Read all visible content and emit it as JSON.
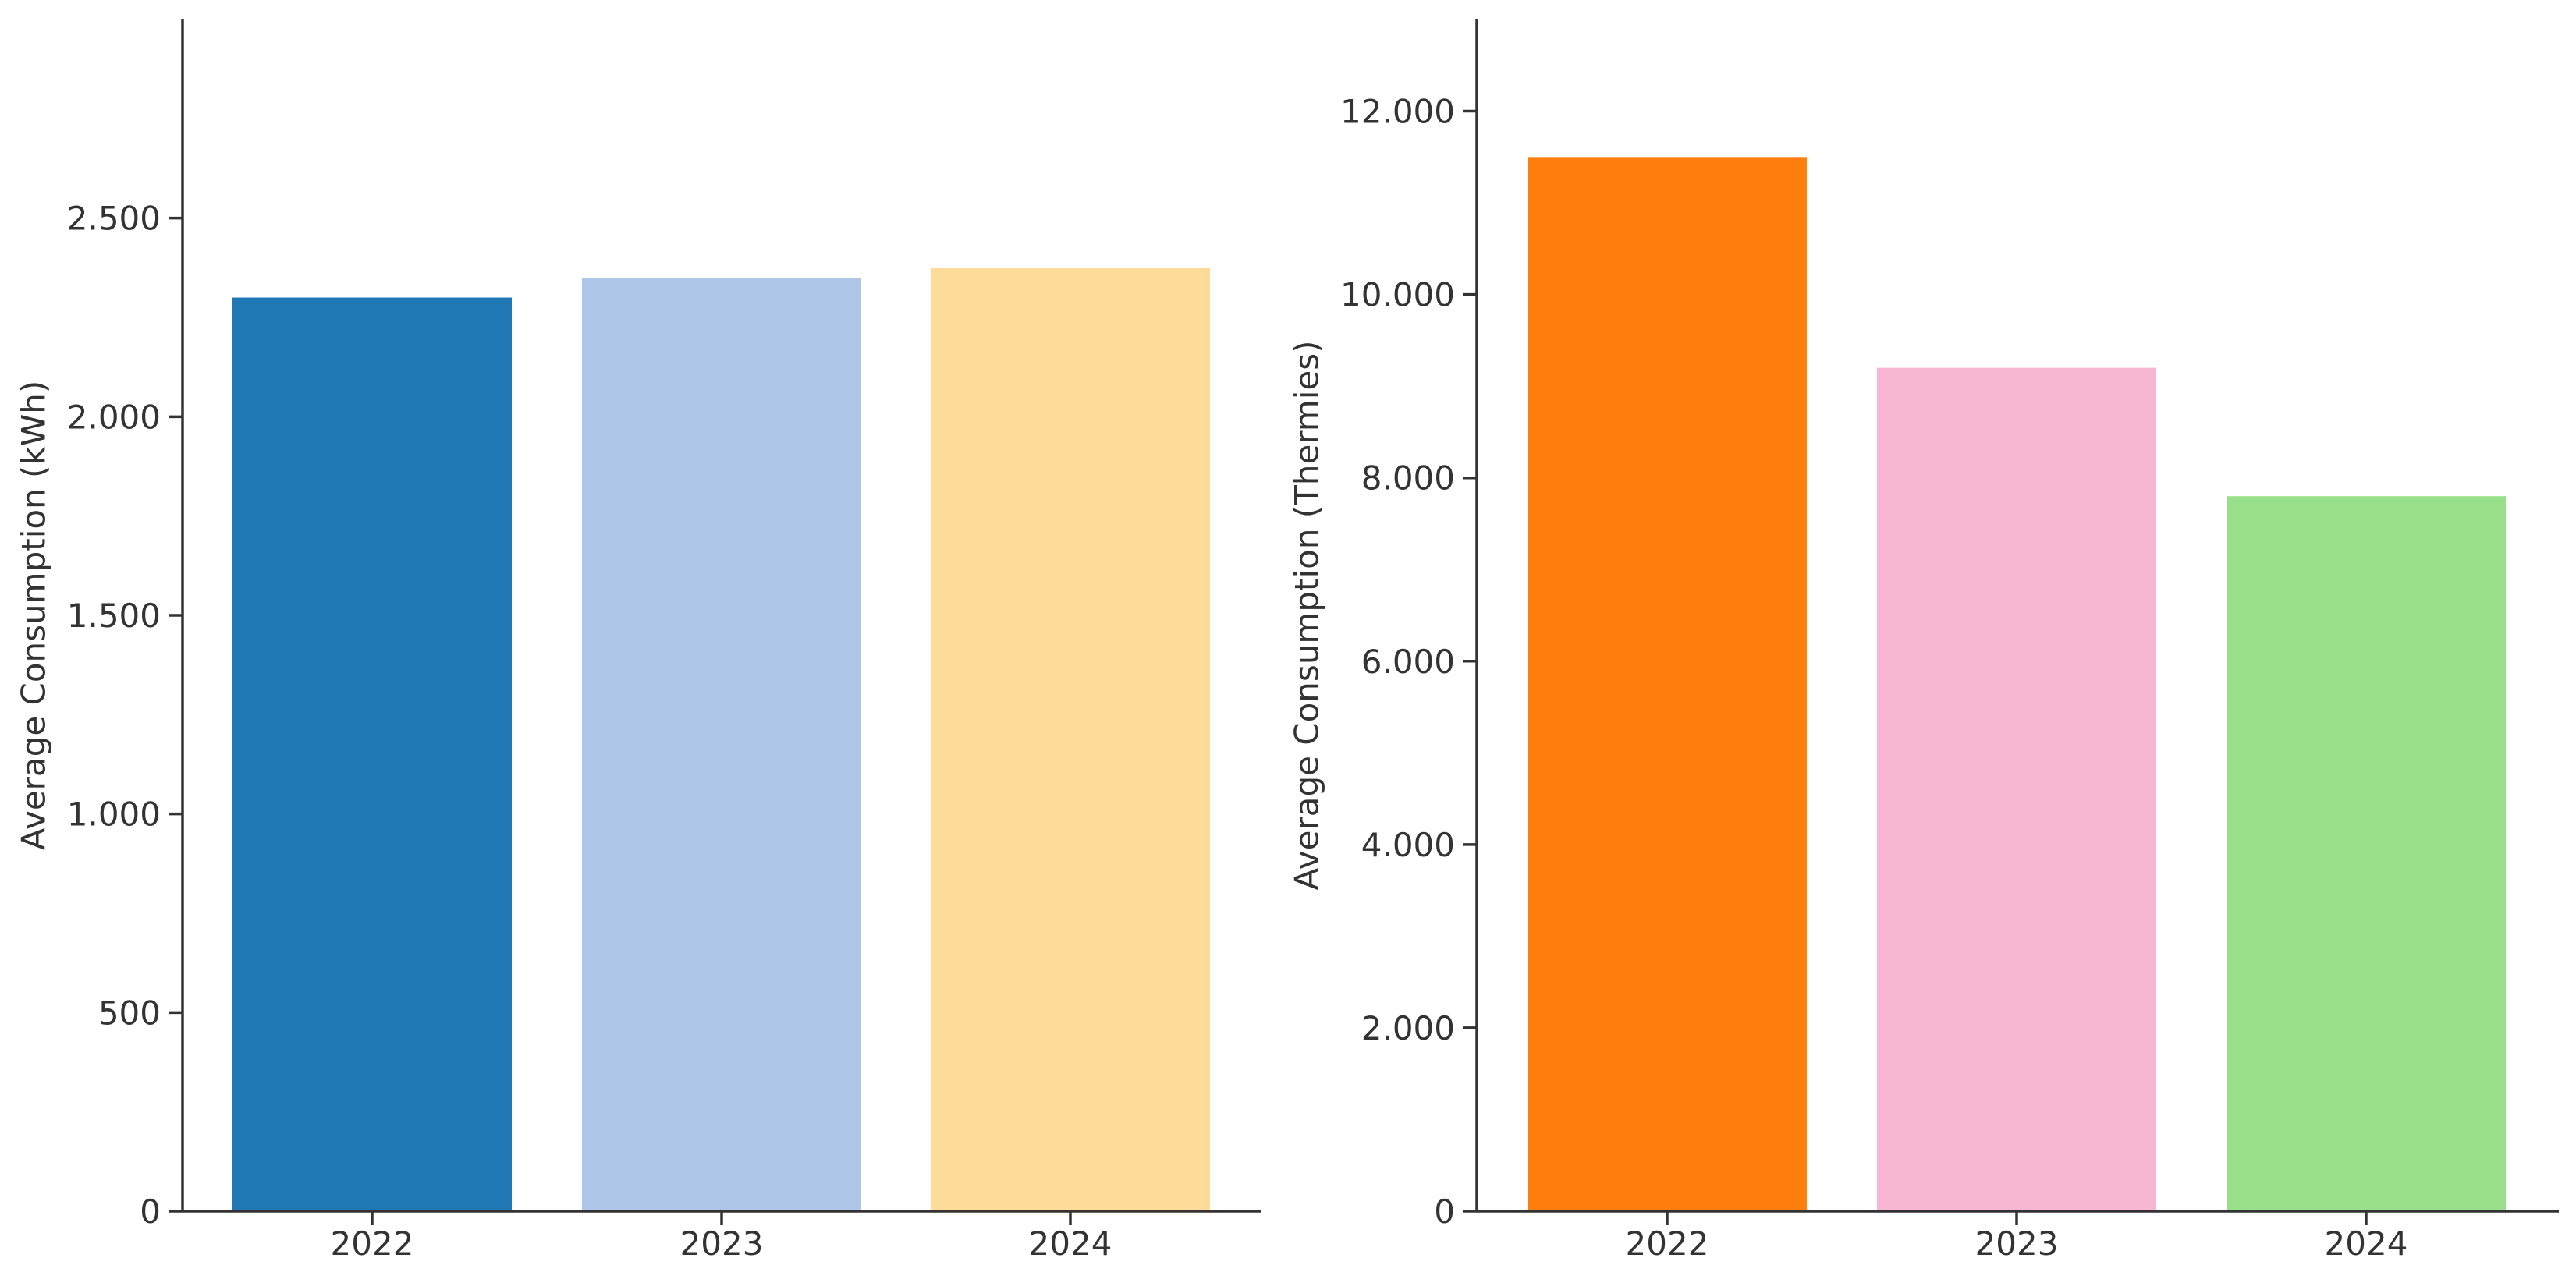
{
  "chart_data": [
    {
      "type": "bar",
      "categories": [
        "2022",
        "2023",
        "2024"
      ],
      "values": [
        2300,
        2350,
        2375
      ],
      "colors": [
        "#1f77b4",
        "#aec7e8",
        "#ffdb99"
      ],
      "title": "",
      "xlabel": "",
      "ylabel": "Average Consumption (kWh)",
      "ylim": [
        0,
        3000
      ],
      "yticks": [
        0,
        500,
        1000,
        1500,
        2000,
        2500
      ],
      "ytick_labels": [
        "0",
        "500",
        "1.000",
        "1.500",
        "2.000",
        "2.500"
      ],
      "grid": false,
      "legend": "none"
    },
    {
      "type": "bar",
      "categories": [
        "2022",
        "2023",
        "2024"
      ],
      "values": [
        11500,
        9200,
        7800
      ],
      "colors": [
        "#ff7f0e",
        "#f7b6d2",
        "#98df8a"
      ],
      "title": "",
      "xlabel": "",
      "ylabel": "Average Consumption (Thermies)",
      "ylim": [
        0,
        13000
      ],
      "yticks": [
        0,
        2000,
        4000,
        6000,
        8000,
        10000,
        12000
      ],
      "ytick_labels": [
        "0",
        "2.000",
        "4.000",
        "6.000",
        "8.000",
        "10.000",
        "12.000"
      ],
      "grid": false,
      "legend": "none"
    }
  ]
}
